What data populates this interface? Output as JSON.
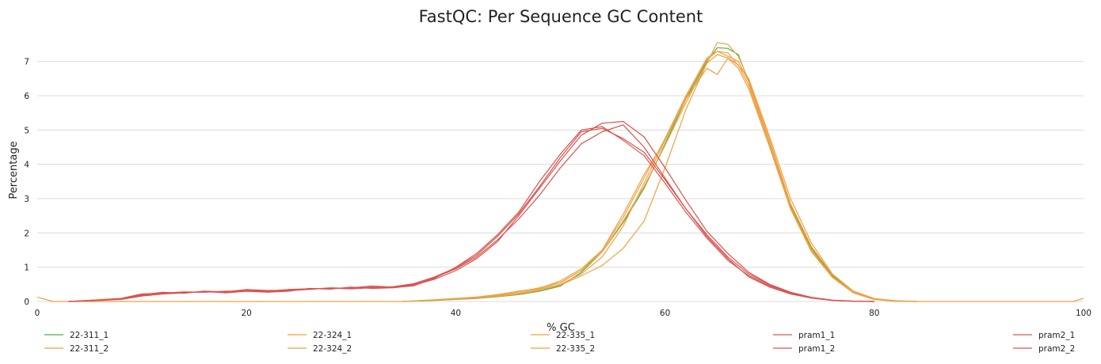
{
  "chart_data": {
    "type": "line",
    "title": "FastQC: Per Sequence GC Content",
    "xlabel": "% GC",
    "ylabel": "Percentage",
    "xlim": [
      0,
      100
    ],
    "ylim": [
      0,
      7.8
    ],
    "x_ticks": [
      0,
      20,
      40,
      60,
      80,
      100
    ],
    "y_ticks": [
      0,
      1,
      2,
      3,
      4,
      5,
      6,
      7
    ],
    "grid": true,
    "legend_position": "bottom",
    "series": [
      {
        "name": "22-311_1",
        "color": "#4daf4a",
        "points": [
          [
            35,
            0
          ],
          [
            38,
            0.03
          ],
          [
            40,
            0.06
          ],
          [
            42,
            0.09
          ],
          [
            44,
            0.14
          ],
          [
            46,
            0.2
          ],
          [
            48,
            0.3
          ],
          [
            50,
            0.45
          ],
          [
            52,
            0.85
          ],
          [
            54,
            1.45
          ],
          [
            56,
            2.3
          ],
          [
            58,
            3.3
          ],
          [
            60,
            4.6
          ],
          [
            62,
            5.9
          ],
          [
            64,
            7.0
          ],
          [
            65,
            7.4
          ],
          [
            66,
            7.38
          ],
          [
            67,
            7.2
          ],
          [
            68,
            6.4
          ],
          [
            70,
            4.6
          ],
          [
            72,
            2.8
          ],
          [
            74,
            1.55
          ],
          [
            76,
            0.75
          ],
          [
            78,
            0.3
          ],
          [
            80,
            0.08
          ],
          [
            82,
            0.02
          ],
          [
            84,
            0
          ]
        ]
      },
      {
        "name": "22-311_2",
        "color": "#f0a040",
        "points": [
          [
            0,
            0.13
          ],
          [
            1.5,
            0
          ],
          [
            35,
            0
          ],
          [
            38,
            0.04
          ],
          [
            40,
            0.08
          ],
          [
            42,
            0.12
          ],
          [
            44,
            0.18
          ],
          [
            46,
            0.28
          ],
          [
            48,
            0.38
          ],
          [
            50,
            0.55
          ],
          [
            52,
            0.9
          ],
          [
            54,
            1.5
          ],
          [
            56,
            2.45
          ],
          [
            58,
            3.6
          ],
          [
            60,
            4.75
          ],
          [
            62,
            6.0
          ],
          [
            64,
            7.1
          ],
          [
            65,
            7.3
          ],
          [
            66,
            7.25
          ],
          [
            68,
            6.5
          ],
          [
            70,
            4.8
          ],
          [
            72,
            3.0
          ],
          [
            74,
            1.7
          ],
          [
            76,
            0.8
          ],
          [
            78,
            0.3
          ],
          [
            80,
            0.08
          ],
          [
            82,
            0.02
          ],
          [
            84,
            0
          ],
          [
            99,
            0
          ],
          [
            100,
            0.09
          ]
        ]
      },
      {
        "name": "22-324_1",
        "color": "#f0a040",
        "points": [
          [
            35,
            0
          ],
          [
            38,
            0.05
          ],
          [
            40,
            0.08
          ],
          [
            42,
            0.12
          ],
          [
            44,
            0.2
          ],
          [
            46,
            0.3
          ],
          [
            48,
            0.38
          ],
          [
            50,
            0.6
          ],
          [
            52,
            0.95
          ],
          [
            54,
            1.5
          ],
          [
            56,
            2.55
          ],
          [
            58,
            3.7
          ],
          [
            60,
            4.7
          ],
          [
            62,
            5.9
          ],
          [
            64,
            6.8
          ],
          [
            65,
            6.62
          ],
          [
            66,
            7.1
          ],
          [
            67,
            6.9
          ],
          [
            68,
            6.3
          ],
          [
            70,
            4.5
          ],
          [
            72,
            2.7
          ],
          [
            74,
            1.5
          ],
          [
            76,
            0.7
          ],
          [
            78,
            0.25
          ],
          [
            80,
            0.06
          ],
          [
            82,
            0.01
          ],
          [
            84,
            0
          ]
        ]
      },
      {
        "name": "22-324_2",
        "color": "#f0a040",
        "points": [
          [
            35,
            0
          ],
          [
            38,
            0.05
          ],
          [
            40,
            0.09
          ],
          [
            42,
            0.13
          ],
          [
            44,
            0.2
          ],
          [
            46,
            0.28
          ],
          [
            48,
            0.4
          ],
          [
            50,
            0.55
          ],
          [
            52,
            0.9
          ],
          [
            54,
            1.45
          ],
          [
            56,
            2.35
          ],
          [
            58,
            3.35
          ],
          [
            60,
            4.55
          ],
          [
            62,
            5.8
          ],
          [
            64,
            6.95
          ],
          [
            65,
            7.55
          ],
          [
            66,
            7.5
          ],
          [
            67,
            7.15
          ],
          [
            68,
            6.45
          ],
          [
            70,
            4.7
          ],
          [
            72,
            2.85
          ],
          [
            74,
            1.6
          ],
          [
            76,
            0.78
          ],
          [
            78,
            0.3
          ],
          [
            80,
            0.08
          ],
          [
            82,
            0.02
          ],
          [
            84,
            0
          ]
        ]
      },
      {
        "name": "22-335_1",
        "color": "#f0a040",
        "points": [
          [
            35,
            0
          ],
          [
            38,
            0.04
          ],
          [
            40,
            0.07
          ],
          [
            42,
            0.1
          ],
          [
            44,
            0.16
          ],
          [
            46,
            0.24
          ],
          [
            48,
            0.35
          ],
          [
            50,
            0.5
          ],
          [
            52,
            0.8
          ],
          [
            54,
            1.3
          ],
          [
            56,
            2.2
          ],
          [
            58,
            3.45
          ],
          [
            60,
            4.7
          ],
          [
            62,
            5.95
          ],
          [
            64,
            7.05
          ],
          [
            65,
            7.3
          ],
          [
            66,
            7.15
          ],
          [
            67,
            7.0
          ],
          [
            68,
            6.4
          ],
          [
            70,
            4.6
          ],
          [
            72,
            2.75
          ],
          [
            74,
            1.5
          ],
          [
            76,
            0.72
          ],
          [
            78,
            0.26
          ],
          [
            80,
            0.07
          ],
          [
            82,
            0.01
          ],
          [
            84,
            0
          ]
        ]
      },
      {
        "name": "22-335_2",
        "color": "#f0a040",
        "points": [
          [
            35,
            0
          ],
          [
            38,
            0.04
          ],
          [
            40,
            0.07
          ],
          [
            42,
            0.1
          ],
          [
            44,
            0.15
          ],
          [
            46,
            0.22
          ],
          [
            48,
            0.32
          ],
          [
            50,
            0.48
          ],
          [
            52,
            0.75
          ],
          [
            54,
            1.05
          ],
          [
            56,
            1.55
          ],
          [
            58,
            2.35
          ],
          [
            60,
            3.9
          ],
          [
            62,
            5.6
          ],
          [
            64,
            6.95
          ],
          [
            65,
            7.2
          ],
          [
            66,
            7.1
          ],
          [
            67,
            6.8
          ],
          [
            68,
            6.2
          ],
          [
            70,
            4.5
          ],
          [
            72,
            2.7
          ],
          [
            74,
            1.45
          ],
          [
            76,
            0.7
          ],
          [
            78,
            0.25
          ],
          [
            80,
            0.06
          ],
          [
            82,
            0.01
          ],
          [
            84,
            0
          ]
        ]
      },
      {
        "name": "pram1_1",
        "color": "#d9534f",
        "points": [
          [
            3,
            0
          ],
          [
            6,
            0.05
          ],
          [
            8,
            0.08
          ],
          [
            10,
            0.2
          ],
          [
            12,
            0.27
          ],
          [
            14,
            0.24
          ],
          [
            16,
            0.3
          ],
          [
            18,
            0.25
          ],
          [
            20,
            0.3
          ],
          [
            22,
            0.28
          ],
          [
            24,
            0.32
          ],
          [
            26,
            0.35
          ],
          [
            28,
            0.4
          ],
          [
            30,
            0.38
          ],
          [
            32,
            0.42
          ],
          [
            34,
            0.4
          ],
          [
            36,
            0.5
          ],
          [
            38,
            0.7
          ],
          [
            40,
            0.95
          ],
          [
            42,
            1.3
          ],
          [
            44,
            1.8
          ],
          [
            46,
            2.4
          ],
          [
            48,
            3.1
          ],
          [
            50,
            3.9
          ],
          [
            52,
            4.6
          ],
          [
            54,
            4.95
          ],
          [
            56,
            5.15
          ],
          [
            58,
            4.5
          ],
          [
            60,
            3.6
          ],
          [
            62,
            2.7
          ],
          [
            64,
            1.95
          ],
          [
            66,
            1.3
          ],
          [
            68,
            0.8
          ],
          [
            70,
            0.48
          ],
          [
            72,
            0.26
          ],
          [
            74,
            0.12
          ],
          [
            76,
            0.04
          ],
          [
            78,
            0.01
          ],
          [
            80,
            0
          ]
        ]
      },
      {
        "name": "pram1_2",
        "color": "#d9534f",
        "points": [
          [
            3,
            0
          ],
          [
            6,
            0.04
          ],
          [
            8,
            0.07
          ],
          [
            10,
            0.18
          ],
          [
            12,
            0.25
          ],
          [
            14,
            0.26
          ],
          [
            16,
            0.28
          ],
          [
            18,
            0.27
          ],
          [
            20,
            0.32
          ],
          [
            22,
            0.3
          ],
          [
            24,
            0.35
          ],
          [
            26,
            0.37
          ],
          [
            28,
            0.38
          ],
          [
            30,
            0.4
          ],
          [
            32,
            0.45
          ],
          [
            34,
            0.42
          ],
          [
            36,
            0.48
          ],
          [
            38,
            0.65
          ],
          [
            40,
            0.9
          ],
          [
            42,
            1.25
          ],
          [
            44,
            1.75
          ],
          [
            46,
            2.5
          ],
          [
            48,
            3.3
          ],
          [
            50,
            4.1
          ],
          [
            52,
            4.85
          ],
          [
            54,
            5.2
          ],
          [
            56,
            5.25
          ],
          [
            58,
            4.8
          ],
          [
            60,
            3.9
          ],
          [
            62,
            2.95
          ],
          [
            64,
            2.05
          ],
          [
            66,
            1.4
          ],
          [
            68,
            0.85
          ],
          [
            70,
            0.5
          ],
          [
            72,
            0.27
          ],
          [
            74,
            0.12
          ],
          [
            76,
            0.04
          ],
          [
            78,
            0.01
          ],
          [
            80,
            0
          ]
        ]
      },
      {
        "name": "pram2_1",
        "color": "#d9534f",
        "points": [
          [
            3,
            0
          ],
          [
            6,
            0.05
          ],
          [
            8,
            0.09
          ],
          [
            10,
            0.22
          ],
          [
            12,
            0.24
          ],
          [
            14,
            0.28
          ],
          [
            16,
            0.27
          ],
          [
            18,
            0.3
          ],
          [
            20,
            0.3
          ],
          [
            22,
            0.27
          ],
          [
            24,
            0.3
          ],
          [
            26,
            0.38
          ],
          [
            28,
            0.36
          ],
          [
            30,
            0.42
          ],
          [
            32,
            0.38
          ],
          [
            34,
            0.4
          ],
          [
            36,
            0.46
          ],
          [
            38,
            0.68
          ],
          [
            40,
            1.0
          ],
          [
            42,
            1.4
          ],
          [
            44,
            1.95
          ],
          [
            46,
            2.6
          ],
          [
            48,
            3.5
          ],
          [
            50,
            4.3
          ],
          [
            52,
            5.0
          ],
          [
            54,
            5.1
          ],
          [
            56,
            4.7
          ],
          [
            58,
            4.25
          ],
          [
            60,
            3.45
          ],
          [
            62,
            2.6
          ],
          [
            64,
            1.85
          ],
          [
            66,
            1.2
          ],
          [
            68,
            0.75
          ],
          [
            70,
            0.45
          ],
          [
            72,
            0.24
          ],
          [
            74,
            0.1
          ],
          [
            76,
            0.03
          ],
          [
            78,
            0.01
          ],
          [
            80,
            0
          ]
        ]
      },
      {
        "name": "pram2_2",
        "color": "#d9534f",
        "points": [
          [
            3,
            0
          ],
          [
            6,
            0.03
          ],
          [
            8,
            0.06
          ],
          [
            10,
            0.16
          ],
          [
            12,
            0.22
          ],
          [
            14,
            0.25
          ],
          [
            16,
            0.3
          ],
          [
            18,
            0.28
          ],
          [
            20,
            0.35
          ],
          [
            22,
            0.32
          ],
          [
            24,
            0.33
          ],
          [
            26,
            0.36
          ],
          [
            28,
            0.39
          ],
          [
            30,
            0.37
          ],
          [
            32,
            0.4
          ],
          [
            34,
            0.43
          ],
          [
            36,
            0.52
          ],
          [
            38,
            0.72
          ],
          [
            40,
            0.98
          ],
          [
            42,
            1.35
          ],
          [
            44,
            1.9
          ],
          [
            46,
            2.55
          ],
          [
            48,
            3.35
          ],
          [
            50,
            4.2
          ],
          [
            52,
            4.95
          ],
          [
            54,
            5.05
          ],
          [
            56,
            4.75
          ],
          [
            58,
            4.35
          ],
          [
            60,
            3.55
          ],
          [
            62,
            2.7
          ],
          [
            64,
            1.9
          ],
          [
            66,
            1.25
          ],
          [
            68,
            0.72
          ],
          [
            70,
            0.42
          ],
          [
            72,
            0.22
          ],
          [
            74,
            0.1
          ],
          [
            76,
            0.03
          ],
          [
            78,
            0.01
          ],
          [
            80,
            0
          ]
        ]
      }
    ]
  }
}
